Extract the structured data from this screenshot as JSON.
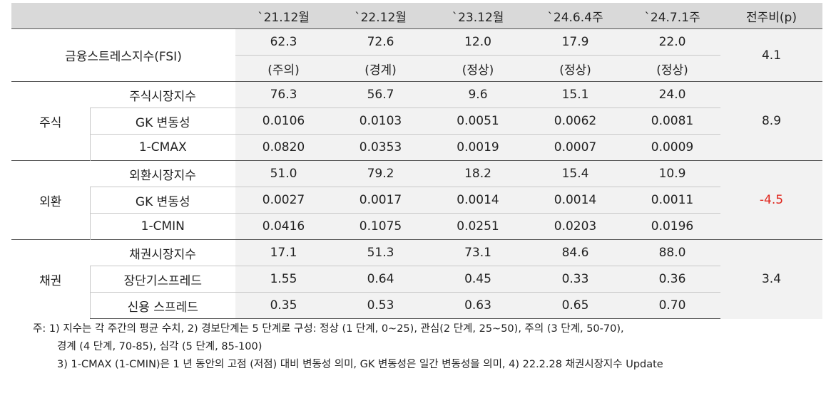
{
  "header": {
    "blank": "",
    "cols": [
      "`21.12월",
      "`22.12월",
      "`23.12월",
      "`24.6.4주",
      "`24.7.1주"
    ],
    "change": "전주비(p)"
  },
  "fsi": {
    "label": "금융스트레스지수(FSI)",
    "values": [
      "62.3",
      "72.6",
      "12.0",
      "17.9",
      "22.0"
    ],
    "status": [
      "(주의)",
      "(경계)",
      "(정상)",
      "(정상)",
      "(정상)"
    ],
    "change": "4.1"
  },
  "groups": [
    {
      "name": "주식",
      "change": "8.9",
      "rows": [
        {
          "label": "주식시장지수",
          "values": [
            "76.3",
            "56.7",
            "9.6",
            "15.1",
            "24.0"
          ]
        },
        {
          "label": "GK 변동성",
          "values": [
            "0.0106",
            "0.0103",
            "0.0051",
            "0.0062",
            "0.0081"
          ]
        },
        {
          "label": "1-CMAX",
          "values": [
            "0.0820",
            "0.0353",
            "0.0019",
            "0.0007",
            "0.0009"
          ]
        }
      ]
    },
    {
      "name": "외환",
      "change": "-4.5",
      "rows": [
        {
          "label": "외환시장지수",
          "values": [
            "51.0",
            "79.2",
            "18.2",
            "15.4",
            "10.9"
          ]
        },
        {
          "label": "GK 변동성",
          "values": [
            "0.0027",
            "0.0017",
            "0.0014",
            "0.0014",
            "0.0011"
          ]
        },
        {
          "label": "1-CMIN",
          "values": [
            "0.0416",
            "0.1075",
            "0.0251",
            "0.0203",
            "0.0196"
          ]
        }
      ]
    },
    {
      "name": "채권",
      "change": "3.4",
      "rows": [
        {
          "label": "채권시장지수",
          "values": [
            "17.1",
            "51.3",
            "73.1",
            "84.6",
            "88.0"
          ]
        },
        {
          "label": "장단기스프레드",
          "values": [
            "1.55",
            "0.64",
            "0.45",
            "0.33",
            "0.36"
          ]
        },
        {
          "label": "신용 스프레드",
          "values": [
            "0.35",
            "0.53",
            "0.63",
            "0.65",
            "0.70"
          ]
        }
      ]
    }
  ],
  "colors": {
    "negative": "#e0271e",
    "header_bg": "#d9d9d9",
    "shade_bg": "#f2f2f2"
  },
  "notes": [
    "주: 1) 지수는 각 주간의 평균 수치, 2) 경보단계는 5 단계로 구성: 정상 (1 단계, 0~25), 관심(2 단계, 25~50), 주의 (3 단계, 50-70),",
    "경계 (4 단계, 70-85), 심각 (5 단계, 85-100)",
    "3) 1-CMAX (1-CMIN)은 1 년 동안의 고점 (저점) 대비 변동성 의미, GK 변동성은 일간 변동성을 의미, 4) 22.2.28 채권시장지수 Update"
  ]
}
